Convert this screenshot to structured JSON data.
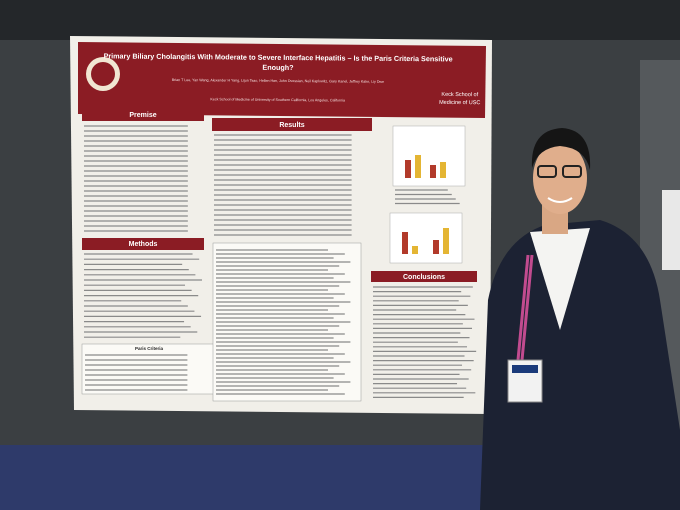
{
  "poster": {
    "title_lines": [
      "Primary Biliary Cholangitis With Moderate to Severe Interface Hepatitis – Is the Paris Criteria Sensitive",
      "Enough?"
    ],
    "authors": "Brian T Lee, Yan Wang, Alexander H Yang, Lijun Tsao, Hellen Han, John Dvessian, Neil Kaplowitz, Gary Kanel, Jeffrey Kahn, Liy Dwe",
    "affiliation": "Keck School of Medicine of University of Southern California, Los Angeles, California",
    "logo": [
      "Keck School of",
      "Medicine of USC"
    ],
    "sections": {
      "premise": "Premise",
      "results": "Results",
      "methods": "Methods",
      "conclusions": "Conclusions",
      "paris": "Paris Criteria"
    }
  }
}
